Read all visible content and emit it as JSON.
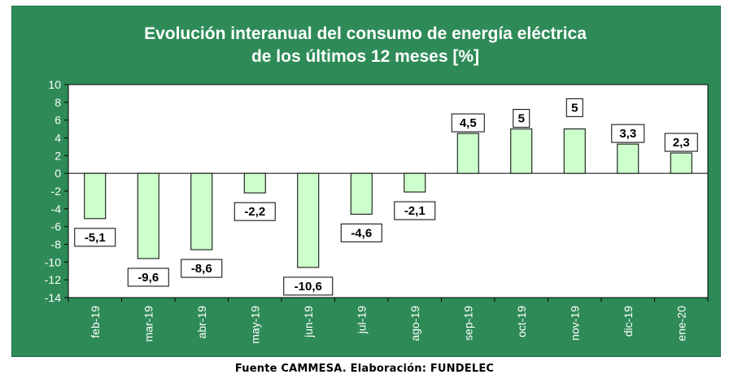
{
  "chart_data": {
    "type": "bar",
    "title": "Evolución interanual del consumo  de energía eléctrica",
    "subtitle": "de los últimos 12 meses [%]",
    "categories": [
      "feb-19",
      "mar-19",
      "abr-19",
      "may-19",
      "jun-19",
      "jul-19",
      "ago-19",
      "sep-19",
      "oct-19",
      "nov-19",
      "dic-19",
      "ene-20"
    ],
    "values": [
      -5.1,
      -9.6,
      -8.6,
      -2.2,
      -10.6,
      -4.6,
      -2.1,
      4.5,
      5,
      5,
      3.3,
      2.3
    ],
    "value_labels": [
      "-5,1",
      "-9,6",
      "-8,6",
      "-2,2",
      "-10,6",
      "-4,6",
      "-2,1",
      "4,5",
      "5",
      "5",
      "3,3",
      "2,3"
    ],
    "yticks": [
      10,
      8,
      6,
      4,
      2,
      0,
      -2,
      -4,
      -6,
      -8,
      -10,
      -12,
      -14
    ],
    "ylim": [
      -14,
      10
    ],
    "grid": false,
    "bar_color": "#CCFFCC",
    "panel_color": "#2E8B57",
    "plot_color": "#FFFFFF"
  },
  "footer": {
    "source": "Fuente CAMMESA. Elaboración: FUNDELEC"
  }
}
